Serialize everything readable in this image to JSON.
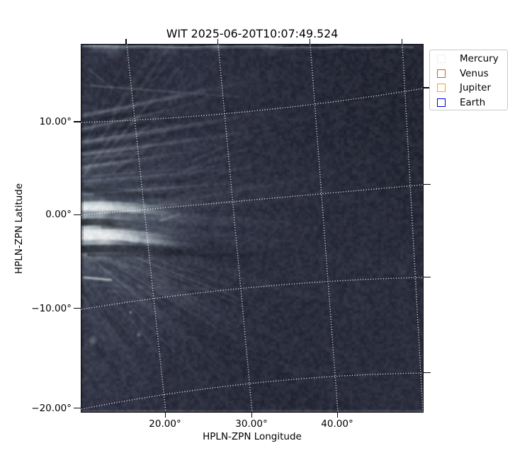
{
  "title": "WIT 2025-06-20T10:07:49.524",
  "axes": {
    "xlabel": "HPLN-ZPN Longitude",
    "ylabel": "HPLN-ZPN Latitude",
    "x_tick_labels": [
      "20.00°",
      "30.00°",
      "40.00°"
    ],
    "y_tick_labels": [
      "10.00°",
      "0.00°",
      "−10.00°",
      "−20.00°"
    ]
  },
  "legend": {
    "items": [
      {
        "label": "Mercury",
        "edge_color": "#eeeeee"
      },
      {
        "label": "Venus",
        "edge_color": "#c8641e"
      },
      {
        "label": "Jupiter",
        "edge_color": "#ffa500"
      },
      {
        "label": "Earth",
        "edge_color": "#0000dd"
      }
    ]
  },
  "image_palette": {
    "base": "#282b3b",
    "bright_streak": "#cdd8e0",
    "dark_streak": "#0a0c14",
    "glow": "#e8f4f4",
    "grid_line": "#ffffff"
  },
  "chart_data": {
    "type": "heatmap",
    "title": "WIT 2025-06-20T10:07:49.524",
    "xlabel": "HPLN-ZPN Longitude",
    "ylabel": "HPLN-ZPN Latitude",
    "xlim_deg": [
      12.5,
      50.5
    ],
    "ylim_deg": [
      -20.5,
      18.5
    ],
    "x_gridlines_deg": [
      20,
      30,
      40,
      50
    ],
    "y_gridlines_deg": [
      10,
      0,
      -10,
      -20
    ],
    "grid": true,
    "grid_style": "white dotted curvilinear WCS graticule",
    "legend_position": "outside upper right",
    "legend_entries": [
      "Mercury",
      "Venus",
      "Jupiter",
      "Earth"
    ],
    "description": "White-light heliospheric image: solar-wind streamers radiate from the Sun located off the left edge near 0 deg latitude; a brilliant streamer core sits at the left edge around -1 to -3 deg latitude with bright and dark radial banding fanning out to the upper-left and lower-left; faint linear wisps cross the darker right half."
  }
}
